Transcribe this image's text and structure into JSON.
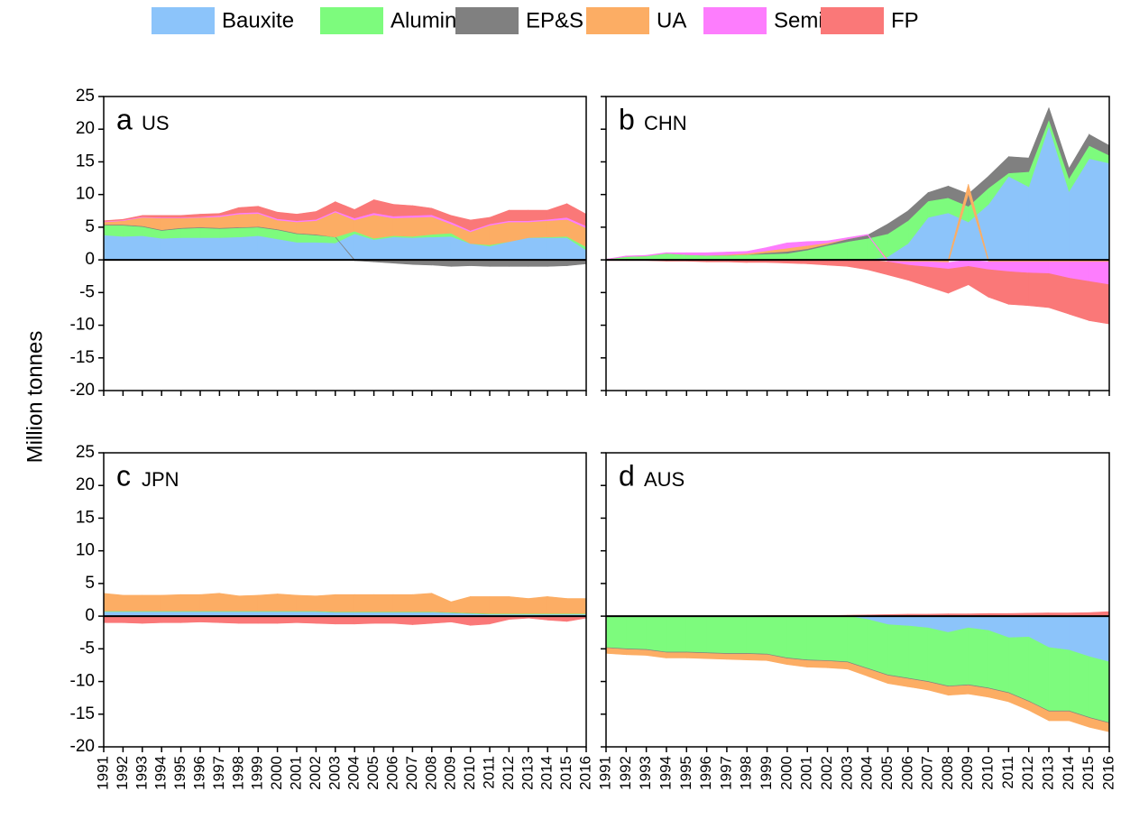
{
  "y_label": "Million tonnes",
  "chart_data": [
    {
      "type": "stacked_area",
      "panel": "a",
      "title": "US",
      "x": [
        1991,
        1992,
        1993,
        1994,
        1995,
        1996,
        1997,
        1998,
        1999,
        2000,
        2001,
        2002,
        2003,
        2004,
        2005,
        2006,
        2007,
        2008,
        2009,
        2010,
        2011,
        2012,
        2013,
        2014,
        2015,
        2016
      ],
      "xlim": [
        1991,
        2016
      ],
      "ylim": [
        -20,
        25
      ],
      "yticks": [
        -20,
        -15,
        -10,
        -5,
        0,
        5,
        10,
        15,
        20,
        25
      ],
      "series": [
        {
          "name": "Bauxite",
          "color": "#8cc4fa",
          "values": [
            3.8,
            3.6,
            3.7,
            3.3,
            3.4,
            3.4,
            3.4,
            3.5,
            3.7,
            3.2,
            2.7,
            2.7,
            2.6,
            4.0,
            3.1,
            3.5,
            3.4,
            3.5,
            3.6,
            2.5,
            2.1,
            2.8,
            3.4,
            3.4,
            3.4,
            1.5
          ]
        },
        {
          "name": "Alumina",
          "color": "#7dfb7d",
          "values": [
            1.5,
            1.7,
            1.4,
            1.2,
            1.4,
            1.5,
            1.4,
            1.4,
            1.3,
            1.4,
            1.3,
            1.1,
            0.9,
            0.4,
            0.2,
            0.2,
            0.2,
            0.4,
            0.5,
            0,
            0.2,
            0,
            0,
            0.1,
            0.2,
            0.5
          ]
        },
        {
          "name": "EP&S",
          "color": "#808080",
          "values": [
            0.1,
            0.1,
            0.1,
            0.1,
            0.1,
            0.1,
            0.1,
            0.1,
            0.1,
            0.1,
            0.1,
            0.1,
            0,
            -0.1,
            -0.3,
            -0.5,
            -0.7,
            -0.8,
            -1.0,
            -0.9,
            -1.0,
            -1.0,
            -1.0,
            -1.0,
            -0.9,
            -0.6
          ]
        },
        {
          "name": "UA",
          "color": "#fcad64",
          "values": [
            0.4,
            0.6,
            1.3,
            1.8,
            1.5,
            1.5,
            1.7,
            2.0,
            2.0,
            1.4,
            1.7,
            2.1,
            3.8,
            1.7,
            3.6,
            2.7,
            2.9,
            2.7,
            1.4,
            1.8,
            3.0,
            3.0,
            2.4,
            2.5,
            2.6,
            2.9
          ]
        },
        {
          "name": "Semis",
          "color": "#fd7dfd",
          "values": [
            0.1,
            0.1,
            0.1,
            0.1,
            0.1,
            0.1,
            0.2,
            0.2,
            0.2,
            0.2,
            0.2,
            0.2,
            0.2,
            0.3,
            0.3,
            0.3,
            0.3,
            0.3,
            0.3,
            0.2,
            0.2,
            0.2,
            0.2,
            0.2,
            0.3,
            0.3
          ]
        },
        {
          "name": "FP",
          "color": "#fa7878",
          "values": [
            0.1,
            0.1,
            0.2,
            0.3,
            0.3,
            0.4,
            0.3,
            0.8,
            0.9,
            1.0,
            1.0,
            1.2,
            1.4,
            1.3,
            2.0,
            1.8,
            1.5,
            1.0,
            1.0,
            1.6,
            1.0,
            1.6,
            1.6,
            1.4,
            2.1,
            1.8
          ]
        }
      ]
    },
    {
      "type": "stacked_area",
      "panel": "b",
      "title": "CHN",
      "x": [
        1991,
        1992,
        1993,
        1994,
        1995,
        1996,
        1997,
        1998,
        1999,
        2000,
        2001,
        2002,
        2003,
        2004,
        2005,
        2006,
        2007,
        2008,
        2009,
        2010,
        2011,
        2012,
        2013,
        2014,
        2015,
        2016
      ],
      "xlim": [
        1991,
        2016
      ],
      "ylim": [
        -20,
        25
      ],
      "yticks": [
        -20,
        -15,
        -10,
        -5,
        0,
        5,
        10,
        15,
        20,
        25
      ],
      "series": [
        {
          "values": [
            0,
            0,
            0,
            0,
            0,
            0,
            0,
            0,
            0,
            0,
            0,
            0,
            0,
            0,
            0.5,
            2.5,
            6.5,
            7.2,
            5.8,
            8.5,
            12.8,
            11.2,
            20.5,
            10.5,
            15.5,
            14.8
          ]
        },
        {
          "values": [
            0.1,
            0.5,
            0.6,
            1.0,
            0.8,
            0.7,
            0.7,
            0.8,
            0.9,
            1.0,
            1.5,
            2.2,
            2.8,
            3.3,
            3.5,
            3.5,
            2.5,
            2.3,
            2.4,
            2.5,
            0.5,
            2.3,
            1.0,
            2.0,
            2.0,
            1.2
          ]
        },
        {
          "values": [
            0,
            0,
            0,
            0,
            0,
            0,
            0,
            0,
            0.2,
            0.3,
            0.2,
            0.2,
            0.4,
            0.5,
            1.5,
            1.5,
            1.3,
            1.8,
            1.9,
            1.8,
            2.5,
            2.1,
            1.8,
            1.5,
            1.7,
            1.5
          ]
        },
        {
          "values": [
            0,
            0,
            0,
            0,
            0,
            0,
            0.1,
            0.2,
            0.3,
            0.5,
            0.5,
            0.2,
            0,
            0,
            -0.2,
            -0.3,
            -0.3,
            -0.4,
            1.5,
            -0.3,
            -0.3,
            -0.3,
            -0.3,
            -0.3,
            -0.3,
            -0.3
          ]
        },
        {
          "values": [
            0,
            0.1,
            0.1,
            0.1,
            0.3,
            0.4,
            0.4,
            0.3,
            0.5,
            0.8,
            0.6,
            0.3,
            0.2,
            0.1,
            -0.1,
            -0.5,
            -0.8,
            -1.0,
            -1.0,
            -1.2,
            -1.5,
            -1.7,
            -1.8,
            -2.5,
            -3.0,
            -3.5
          ]
        },
        {
          "values": [
            -0.1,
            -0.1,
            -0.1,
            -0.2,
            -0.2,
            -0.3,
            -0.3,
            -0.4,
            -0.4,
            -0.5,
            -0.6,
            -0.8,
            -1.0,
            -1.5,
            -2.0,
            -2.3,
            -3.0,
            -3.7,
            -2.8,
            -4.2,
            -5.0,
            -5.0,
            -5.2,
            -5.5,
            -6.0,
            -6.0
          ]
        }
      ]
    },
    {
      "type": "stacked_area",
      "panel": "c",
      "title": "JPN",
      "x": [
        1991,
        1992,
        1993,
        1994,
        1995,
        1996,
        1997,
        1998,
        1999,
        2000,
        2001,
        2002,
        2003,
        2004,
        2005,
        2006,
        2007,
        2008,
        2009,
        2010,
        2011,
        2012,
        2013,
        2014,
        2015,
        2016
      ],
      "xlim": [
        1991,
        2016
      ],
      "ylim": [
        -20,
        25
      ],
      "yticks": [
        -20,
        -15,
        -10,
        -5,
        0,
        5,
        10,
        15,
        20,
        25
      ],
      "series": [
        {
          "values": [
            0.7,
            0.7,
            0.7,
            0.7,
            0.7,
            0.7,
            0.7,
            0.7,
            0.7,
            0.7,
            0.7,
            0.7,
            0.6,
            0.6,
            0.6,
            0.6,
            0.6,
            0.6,
            0.5,
            0.4,
            0.3,
            0.3,
            0.3,
            0.3,
            0.3,
            0.3
          ]
        },
        {
          "values": [
            0.1,
            0.1,
            0.1,
            0.1,
            0.1,
            0.1,
            0.1,
            0.1,
            0.1,
            0.1,
            0.1,
            0.1,
            0.1,
            0.1,
            0.1,
            0.1,
            0.1,
            0.1,
            0.1,
            0.1,
            0.1,
            0.1,
            0.1,
            0.1,
            0.1,
            0.1
          ]
        },
        {
          "values": [
            0,
            0,
            0,
            0,
            0,
            0,
            0,
            0,
            0,
            0,
            0,
            0,
            0,
            0,
            0,
            0,
            0,
            0,
            0,
            0,
            0,
            0,
            0,
            0,
            0,
            0
          ]
        },
        {
          "values": [
            2.7,
            2.4,
            2.4,
            2.4,
            2.5,
            2.5,
            2.7,
            2.3,
            2.4,
            2.6,
            2.4,
            2.3,
            2.6,
            2.6,
            2.6,
            2.6,
            2.6,
            2.8,
            1.6,
            2.5,
            2.6,
            2.6,
            2.3,
            2.6,
            2.3,
            2.3
          ]
        },
        {
          "values": [
            -0.1,
            -0.1,
            -0.1,
            -0.1,
            -0.1,
            -0.1,
            -0.1,
            -0.1,
            -0.1,
            -0.1,
            -0.1,
            -0.1,
            -0.1,
            -0.1,
            -0.1,
            -0.1,
            -0.1,
            -0.1,
            -0.1,
            -0.1,
            -0.1,
            -0.1,
            -0.1,
            -0.1,
            -0.1,
            -0.1
          ]
        },
        {
          "values": [
            -0.9,
            -0.9,
            -1.0,
            -0.9,
            -0.9,
            -0.8,
            -0.9,
            -1.0,
            -1.0,
            -1.0,
            -0.9,
            -1.0,
            -1.1,
            -1.1,
            -1.0,
            -1.0,
            -1.2,
            -1.0,
            -0.8,
            -1.3,
            -1.1,
            -0.4,
            -0.2,
            -0.5,
            -0.7,
            -0.2
          ]
        }
      ]
    },
    {
      "type": "stacked_area",
      "panel": "d",
      "title": "AUS",
      "x": [
        1991,
        1992,
        1993,
        1994,
        1995,
        1996,
        1997,
        1998,
        1999,
        2000,
        2001,
        2002,
        2003,
        2004,
        2005,
        2006,
        2007,
        2008,
        2009,
        2010,
        2011,
        2012,
        2013,
        2014,
        2015,
        2016
      ],
      "xlim": [
        1991,
        2016
      ],
      "ylim": [
        -20,
        25
      ],
      "yticks": [
        -20,
        -15,
        -10,
        -5,
        0,
        5,
        10,
        15,
        20,
        25
      ],
      "series": [
        {
          "values": [
            0,
            0,
            0,
            0,
            0,
            0,
            0,
            0,
            0,
            0,
            0,
            0,
            0,
            -0.5,
            -1.3,
            -1.5,
            -1.8,
            -2.5,
            -1.8,
            -2.2,
            -3.3,
            -3.2,
            -4.8,
            -5.2,
            -6.2,
            -7.0
          ]
        },
        {
          "values": [
            -4.8,
            -5.0,
            -5.1,
            -5.5,
            -5.5,
            -5.6,
            -5.7,
            -5.7,
            -5.8,
            -6.4,
            -6.7,
            -6.8,
            -7.0,
            -7.5,
            -7.7,
            -8.0,
            -8.2,
            -8.2,
            -8.7,
            -8.8,
            -8.4,
            -9.8,
            -9.7,
            -9.3,
            -9.3,
            -9.3
          ]
        },
        {
          "values": [
            -0.1,
            -0.1,
            -0.1,
            -0.1,
            -0.1,
            -0.1,
            -0.1,
            -0.1,
            -0.1,
            -0.1,
            -0.1,
            -0.1,
            -0.1,
            -0.1,
            -0.1,
            -0.1,
            -0.1,
            -0.1,
            -0.1,
            -0.1,
            -0.1,
            -0.1,
            -0.1,
            -0.1,
            -0.1,
            -0.1
          ]
        },
        {
          "values": [
            -0.8,
            -0.8,
            -0.8,
            -0.8,
            -0.8,
            -0.8,
            -0.8,
            -0.9,
            -0.9,
            -0.9,
            -1.0,
            -1.0,
            -1.0,
            -1.1,
            -1.2,
            -1.2,
            -1.2,
            -1.3,
            -1.3,
            -1.3,
            -1.3,
            -1.3,
            -1.4,
            -1.4,
            -1.4,
            -1.3
          ]
        },
        {
          "values": [
            0,
            0,
            0,
            0,
            0,
            0,
            0,
            0,
            0,
            0,
            0,
            0,
            0,
            0,
            0,
            0,
            0,
            0,
            0,
            0,
            0,
            0,
            0,
            0,
            0,
            0
          ]
        },
        {
          "values": [
            0,
            0,
            0,
            0,
            0,
            0,
            0,
            0.05,
            0.1,
            0.1,
            0.1,
            0.1,
            0.15,
            0.2,
            0.25,
            0.3,
            0.3,
            0.35,
            0.35,
            0.4,
            0.4,
            0.45,
            0.5,
            0.5,
            0.55,
            0.7
          ]
        }
      ]
    }
  ]
}
